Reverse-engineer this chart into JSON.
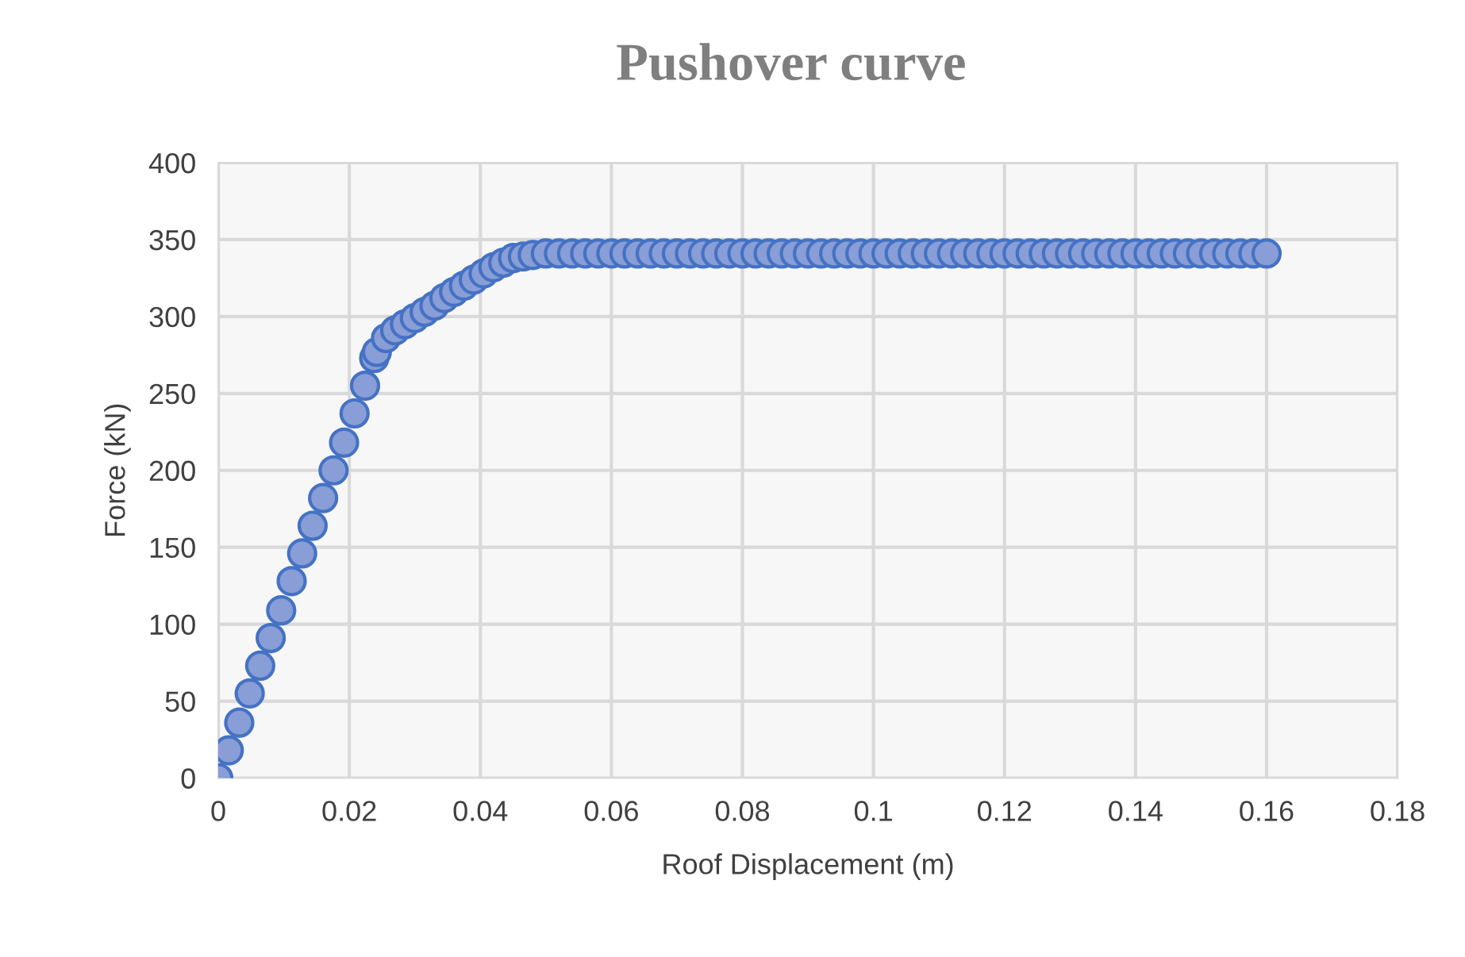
{
  "chart_data": {
    "type": "scatter",
    "title": "Pushover curve",
    "xlabel": "Roof Displacement (m)",
    "ylabel": "Force (kN)",
    "x": [
      0,
      0.0016,
      0.0032,
      0.0048,
      0.0064,
      0.008,
      0.0096,
      0.0112,
      0.0128,
      0.0144,
      0.016,
      0.0176,
      0.0192,
      0.0208,
      0.0224,
      0.0238,
      0.0242,
      0.0256,
      0.027,
      0.0285,
      0.03,
      0.0315,
      0.033,
      0.0345,
      0.036,
      0.0375,
      0.039,
      0.0405,
      0.042,
      0.0435,
      0.045,
      0.0465,
      0.048,
      0.05,
      0.052,
      0.054,
      0.056,
      0.058,
      0.06,
      0.062,
      0.064,
      0.066,
      0.068,
      0.07,
      0.072,
      0.074,
      0.076,
      0.078,
      0.08,
      0.082,
      0.084,
      0.086,
      0.088,
      0.09,
      0.092,
      0.094,
      0.096,
      0.098,
      0.1,
      0.102,
      0.104,
      0.106,
      0.108,
      0.11,
      0.112,
      0.114,
      0.116,
      0.118,
      0.12,
      0.122,
      0.124,
      0.126,
      0.128,
      0.13,
      0.132,
      0.134,
      0.136,
      0.138,
      0.14,
      0.142,
      0.144,
      0.146,
      0.148,
      0.15,
      0.152,
      0.154,
      0.156,
      0.158,
      0.16
    ],
    "series": [
      {
        "color": "#4472c4",
        "values": [
          0,
          18,
          36,
          55,
          73,
          91,
          109,
          128,
          146,
          164,
          182,
          200,
          218,
          237,
          255,
          273,
          277,
          286,
          291,
          295,
          299,
          303,
          307,
          312,
          316,
          320,
          324,
          328,
          332,
          335,
          338,
          339,
          340,
          341,
          341,
          341,
          341,
          341,
          341,
          341,
          341,
          341,
          341,
          341,
          341,
          341,
          341,
          341,
          341,
          341,
          341,
          341,
          341,
          341,
          341,
          341,
          341,
          341,
          341,
          341,
          341,
          341,
          341,
          341,
          341,
          341,
          341,
          341,
          341,
          341,
          341,
          341,
          341,
          341,
          341,
          341,
          341,
          341,
          341,
          341,
          341,
          341,
          341,
          341,
          341,
          341,
          341,
          341,
          341
        ]
      }
    ],
    "xlim": [
      0,
      0.18
    ],
    "xticks": [
      0,
      0.02,
      0.04,
      0.06,
      0.08,
      0.1,
      0.12,
      0.14,
      0.16,
      0.18
    ],
    "ylim": [
      0,
      400
    ],
    "yticks": [
      0,
      50,
      100,
      150,
      200,
      250,
      300,
      350,
      400
    ],
    "grid": true,
    "marker": "circle"
  }
}
